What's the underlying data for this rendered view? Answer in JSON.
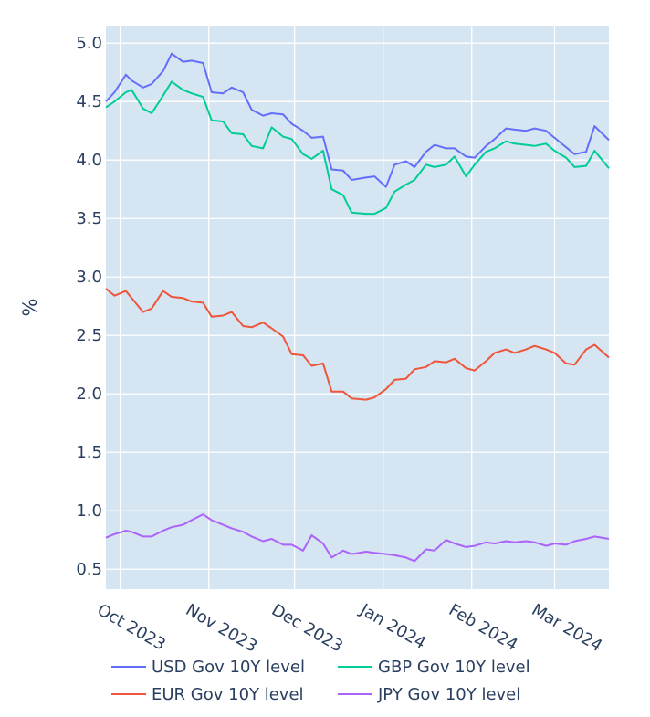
{
  "chart_data": {
    "type": "line",
    "ylabel": "%",
    "xlabel": "",
    "ylim": [
      0.33,
      5.15
    ],
    "xlim": [
      "2023-09-26",
      "2024-03-20"
    ],
    "y_ticks": [
      0.5,
      1.0,
      1.5,
      2.0,
      2.5,
      3.0,
      3.5,
      4.0,
      4.5,
      5.0
    ],
    "y_tick_labels": [
      "0.5",
      "1.0",
      "1.5",
      "2.0",
      "2.5",
      "3.0",
      "3.5",
      "4.0",
      "4.5",
      "5.0"
    ],
    "x_ticks": [
      "2023-10-01",
      "2023-11-01",
      "2023-12-01",
      "2024-01-01",
      "2024-02-01",
      "2024-03-01"
    ],
    "x_tick_labels": [
      "Oct 2023",
      "Nov 2023",
      "Dec 2023",
      "Jan 2024",
      "Feb 2024",
      "Mar 2024"
    ],
    "grid": true,
    "legend_position": "bottom",
    "colors": {
      "plot_bg": "#d5e5f2",
      "grid": "#ffffff",
      "text": "#2a3f5f"
    },
    "series": [
      {
        "name": "USD Gov 10Y level",
        "color": "#636efa",
        "x": [
          "2023-09-26",
          "2023-09-29",
          "2023-10-03",
          "2023-10-05",
          "2023-10-09",
          "2023-10-12",
          "2023-10-16",
          "2023-10-19",
          "2023-10-23",
          "2023-10-26",
          "2023-10-30",
          "2023-11-02",
          "2023-11-06",
          "2023-11-09",
          "2023-11-13",
          "2023-11-16",
          "2023-11-20",
          "2023-11-23",
          "2023-11-27",
          "2023-11-30",
          "2023-12-04",
          "2023-12-07",
          "2023-12-11",
          "2023-12-14",
          "2023-12-18",
          "2023-12-21",
          "2023-12-26",
          "2023-12-29",
          "2024-01-02",
          "2024-01-05",
          "2024-01-09",
          "2024-01-12",
          "2024-01-16",
          "2024-01-19",
          "2024-01-23",
          "2024-01-26",
          "2024-01-30",
          "2024-02-02",
          "2024-02-06",
          "2024-02-09",
          "2024-02-13",
          "2024-02-16",
          "2024-02-20",
          "2024-02-23",
          "2024-02-27",
          "2024-03-01",
          "2024-03-05",
          "2024-03-08",
          "2024-03-12",
          "2024-03-15",
          "2024-03-20"
        ],
        "y": [
          4.5,
          4.58,
          4.73,
          4.68,
          4.62,
          4.65,
          4.76,
          4.91,
          4.84,
          4.85,
          4.83,
          4.58,
          4.57,
          4.62,
          4.58,
          4.43,
          4.38,
          4.4,
          4.39,
          4.31,
          4.25,
          4.19,
          4.2,
          3.92,
          3.91,
          3.83,
          3.85,
          3.86,
          3.77,
          3.96,
          3.99,
          3.94,
          4.07,
          4.13,
          4.1,
          4.1,
          4.03,
          4.02,
          4.12,
          4.18,
          4.27,
          4.26,
          4.25,
          4.27,
          4.25,
          4.19,
          4.11,
          4.05,
          4.07,
          4.29,
          4.17
        ]
      },
      {
        "name": "GBP Gov 10Y level",
        "color": "#00cc96",
        "x": [
          "2023-09-26",
          "2023-09-29",
          "2023-10-03",
          "2023-10-05",
          "2023-10-09",
          "2023-10-12",
          "2023-10-16",
          "2023-10-19",
          "2023-10-23",
          "2023-10-26",
          "2023-10-30",
          "2023-11-02",
          "2023-11-06",
          "2023-11-09",
          "2023-11-13",
          "2023-11-16",
          "2023-11-20",
          "2023-11-23",
          "2023-11-27",
          "2023-11-30",
          "2023-12-04",
          "2023-12-07",
          "2023-12-11",
          "2023-12-14",
          "2023-12-18",
          "2023-12-21",
          "2023-12-26",
          "2023-12-29",
          "2024-01-02",
          "2024-01-05",
          "2024-01-09",
          "2024-01-12",
          "2024-01-16",
          "2024-01-19",
          "2024-01-23",
          "2024-01-26",
          "2024-01-30",
          "2024-02-02",
          "2024-02-06",
          "2024-02-09",
          "2024-02-13",
          "2024-02-16",
          "2024-02-20",
          "2024-02-23",
          "2024-02-27",
          "2024-03-01",
          "2024-03-05",
          "2024-03-08",
          "2024-03-12",
          "2024-03-15",
          "2024-03-20"
        ],
        "y": [
          4.45,
          4.5,
          4.58,
          4.6,
          4.44,
          4.4,
          4.55,
          4.67,
          4.6,
          4.57,
          4.54,
          4.34,
          4.33,
          4.23,
          4.22,
          4.12,
          4.1,
          4.28,
          4.2,
          4.18,
          4.05,
          4.01,
          4.08,
          3.75,
          3.7,
          3.55,
          3.54,
          3.54,
          3.59,
          3.73,
          3.79,
          3.83,
          3.96,
          3.94,
          3.96,
          4.03,
          3.86,
          3.96,
          4.07,
          4.1,
          4.16,
          4.14,
          4.13,
          4.12,
          4.14,
          4.08,
          4.02,
          3.94,
          3.95,
          4.08,
          3.93
        ]
      },
      {
        "name": "EUR Gov 10Y level",
        "color": "#ef553b",
        "x": [
          "2023-09-26",
          "2023-09-29",
          "2023-10-03",
          "2023-10-05",
          "2023-10-09",
          "2023-10-12",
          "2023-10-16",
          "2023-10-19",
          "2023-10-23",
          "2023-10-26",
          "2023-10-30",
          "2023-11-02",
          "2023-11-06",
          "2023-11-09",
          "2023-11-13",
          "2023-11-16",
          "2023-11-20",
          "2023-11-23",
          "2023-11-27",
          "2023-11-30",
          "2023-12-04",
          "2023-12-07",
          "2023-12-11",
          "2023-12-14",
          "2023-12-18",
          "2023-12-21",
          "2023-12-26",
          "2023-12-29",
          "2024-01-02",
          "2024-01-05",
          "2024-01-09",
          "2024-01-12",
          "2024-01-16",
          "2024-01-19",
          "2024-01-23",
          "2024-01-26",
          "2024-01-30",
          "2024-02-02",
          "2024-02-06",
          "2024-02-09",
          "2024-02-13",
          "2024-02-16",
          "2024-02-20",
          "2024-02-23",
          "2024-02-27",
          "2024-03-01",
          "2024-03-05",
          "2024-03-08",
          "2024-03-12",
          "2024-03-15",
          "2024-03-20"
        ],
        "y": [
          2.9,
          2.84,
          2.88,
          2.82,
          2.7,
          2.73,
          2.88,
          2.83,
          2.82,
          2.79,
          2.78,
          2.66,
          2.67,
          2.7,
          2.58,
          2.57,
          2.61,
          2.56,
          2.49,
          2.34,
          2.33,
          2.24,
          2.26,
          2.02,
          2.02,
          1.96,
          1.95,
          1.97,
          2.04,
          2.12,
          2.13,
          2.21,
          2.23,
          2.28,
          2.27,
          2.3,
          2.22,
          2.2,
          2.28,
          2.35,
          2.38,
          2.35,
          2.38,
          2.41,
          2.38,
          2.35,
          2.26,
          2.25,
          2.38,
          2.42,
          2.31
        ]
      },
      {
        "name": "JPY Gov 10Y level",
        "color": "#ab63fa",
        "x": [
          "2023-09-26",
          "2023-09-29",
          "2023-10-03",
          "2023-10-05",
          "2023-10-09",
          "2023-10-12",
          "2023-10-16",
          "2023-10-19",
          "2023-10-23",
          "2023-10-26",
          "2023-10-30",
          "2023-11-02",
          "2023-11-06",
          "2023-11-09",
          "2023-11-13",
          "2023-11-16",
          "2023-11-20",
          "2023-11-23",
          "2023-11-27",
          "2023-11-30",
          "2023-12-04",
          "2023-12-07",
          "2023-12-11",
          "2023-12-14",
          "2023-12-18",
          "2023-12-21",
          "2023-12-26",
          "2023-12-29",
          "2024-01-02",
          "2024-01-05",
          "2024-01-09",
          "2024-01-12",
          "2024-01-16",
          "2024-01-19",
          "2024-01-23",
          "2024-01-26",
          "2024-01-30",
          "2024-02-02",
          "2024-02-06",
          "2024-02-09",
          "2024-02-13",
          "2024-02-16",
          "2024-02-20",
          "2024-02-23",
          "2024-02-27",
          "2024-03-01",
          "2024-03-05",
          "2024-03-08",
          "2024-03-12",
          "2024-03-15",
          "2024-03-20"
        ],
        "y": [
          0.77,
          0.8,
          0.83,
          0.82,
          0.78,
          0.78,
          0.83,
          0.86,
          0.88,
          0.92,
          0.97,
          0.92,
          0.88,
          0.85,
          0.82,
          0.78,
          0.74,
          0.76,
          0.71,
          0.71,
          0.66,
          0.79,
          0.72,
          0.6,
          0.66,
          0.63,
          0.65,
          0.64,
          0.63,
          0.62,
          0.6,
          0.57,
          0.67,
          0.66,
          0.75,
          0.72,
          0.69,
          0.7,
          0.73,
          0.72,
          0.74,
          0.73,
          0.74,
          0.73,
          0.7,
          0.72,
          0.71,
          0.74,
          0.76,
          0.78,
          0.76
        ]
      }
    ]
  }
}
